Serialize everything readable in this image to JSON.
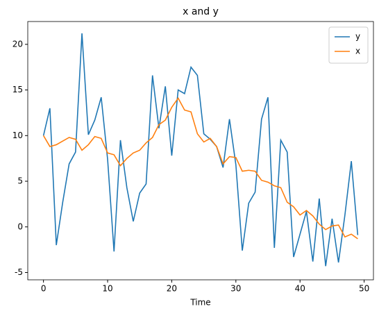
{
  "chart_data": {
    "type": "line",
    "title": "x and y",
    "xlabel": "Time",
    "x": [
      0,
      1,
      2,
      3,
      4,
      5,
      6,
      7,
      8,
      9,
      10,
      11,
      12,
      13,
      14,
      15,
      16,
      17,
      18,
      19,
      20,
      21,
      22,
      23,
      24,
      25,
      26,
      27,
      28,
      29,
      30,
      31,
      32,
      33,
      34,
      35,
      36,
      37,
      38,
      39,
      40,
      41,
      42,
      43,
      44,
      45,
      46,
      47,
      48,
      49
    ],
    "series": [
      {
        "name": "y",
        "color": "#1f77b4",
        "values": [
          10,
          13,
          -2,
          2.7,
          6.9,
          8.2,
          21.2,
          10.1,
          11.7,
          14.2,
          7.4,
          -2.7,
          9.5,
          4.3,
          0.6,
          3.7,
          4.7,
          16.6,
          10.8,
          15.4,
          7.8,
          15,
          14.6,
          17.5,
          16.6,
          10.2,
          9.6,
          8.8,
          6.5,
          11.8,
          6.8,
          -2.6,
          2.6,
          3.8,
          11.8,
          14.2,
          -2.3,
          9.5,
          8.2,
          -3.3,
          -0.8,
          1.7,
          -3.8,
          3.1,
          -4.3,
          0.9,
          -3.9,
          1.3,
          7.2,
          -0.9
        ]
      },
      {
        "name": "x",
        "color": "#ff7f0e",
        "values": [
          10,
          8.8,
          9.0,
          9.4,
          9.8,
          9.6,
          8.4,
          9.0,
          9.9,
          9.7,
          8.1,
          7.9,
          6.7,
          7.5,
          8.1,
          8.4,
          9.2,
          9.8,
          11.2,
          11.7,
          13.1,
          14.1,
          12.8,
          12.6,
          10.2,
          9.3,
          9.7,
          8.8,
          6.9,
          7.7,
          7.6,
          6.1,
          6.2,
          6.1,
          5.1,
          4.9,
          4.5,
          4.3,
          2.7,
          2.2,
          1.3,
          1.8,
          1.2,
          0.3,
          -0.3,
          0.1,
          0.2,
          -1.1,
          -0.8,
          -1.3
        ]
      }
    ],
    "xlim": [
      -2.45,
      51.45
    ],
    "xticks": [
      0,
      10,
      20,
      30,
      40,
      50
    ],
    "ylim": [
      -5.8,
      22.5
    ],
    "yticks": [
      -5,
      0,
      5,
      10,
      15,
      20
    ],
    "legend": "upper right"
  }
}
